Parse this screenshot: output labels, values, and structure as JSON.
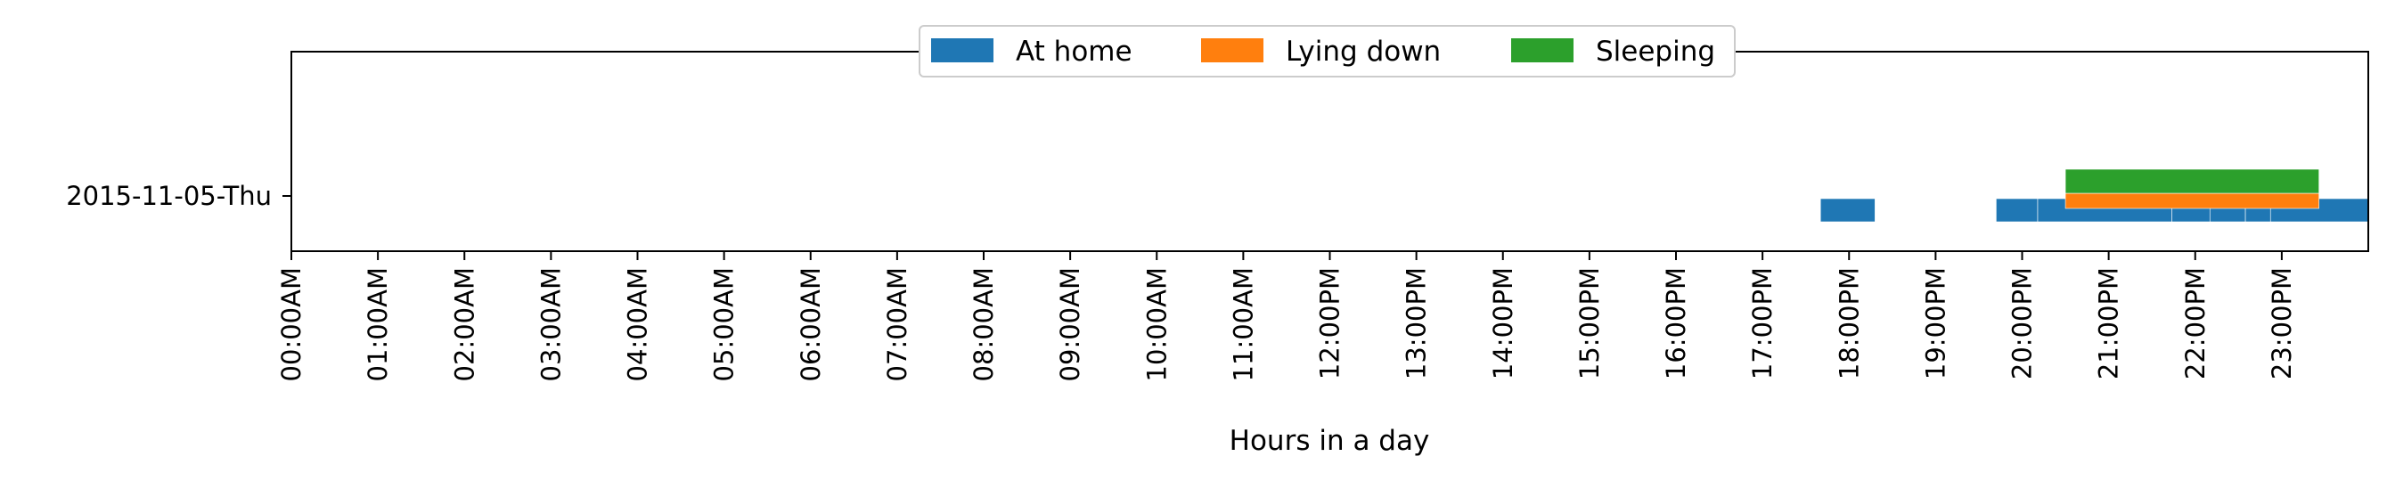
{
  "chart_data": {
    "type": "timeline",
    "xlabel": "Hours in a day",
    "ylabel": "",
    "xlim": [
      0,
      24
    ],
    "x_ticks": [
      "00:00AM",
      "01:00AM",
      "02:00AM",
      "03:00AM",
      "04:00AM",
      "05:00AM",
      "06:00AM",
      "07:00AM",
      "08:00AM",
      "09:00AM",
      "10:00AM",
      "11:00AM",
      "12:00PM",
      "13:00PM",
      "14:00PM",
      "15:00PM",
      "16:00PM",
      "17:00PM",
      "18:00PM",
      "19:00PM",
      "20:00PM",
      "21:00PM",
      "22:00PM",
      "23:00PM"
    ],
    "categories": [
      "2015-11-05-Thu"
    ],
    "legend": {
      "position": "top-center"
    },
    "grid": false,
    "series": [
      {
        "name": "At home",
        "color": "#1f77b4",
        "intervals": [
          [
            17.67,
            18.3
          ],
          [
            19.7,
            20.18
          ],
          [
            20.18,
            21.73
          ],
          [
            21.73,
            22.17
          ],
          [
            22.17,
            22.58
          ],
          [
            22.58,
            22.87
          ],
          [
            22.87,
            24.0
          ]
        ]
      },
      {
        "name": "Lying down",
        "color": "#ff7f0e",
        "intervals": [
          [
            20.5,
            23.43
          ]
        ]
      },
      {
        "name": "Sleeping",
        "color": "#2ca02c",
        "intervals": [
          [
            20.5,
            23.43
          ]
        ]
      }
    ]
  }
}
